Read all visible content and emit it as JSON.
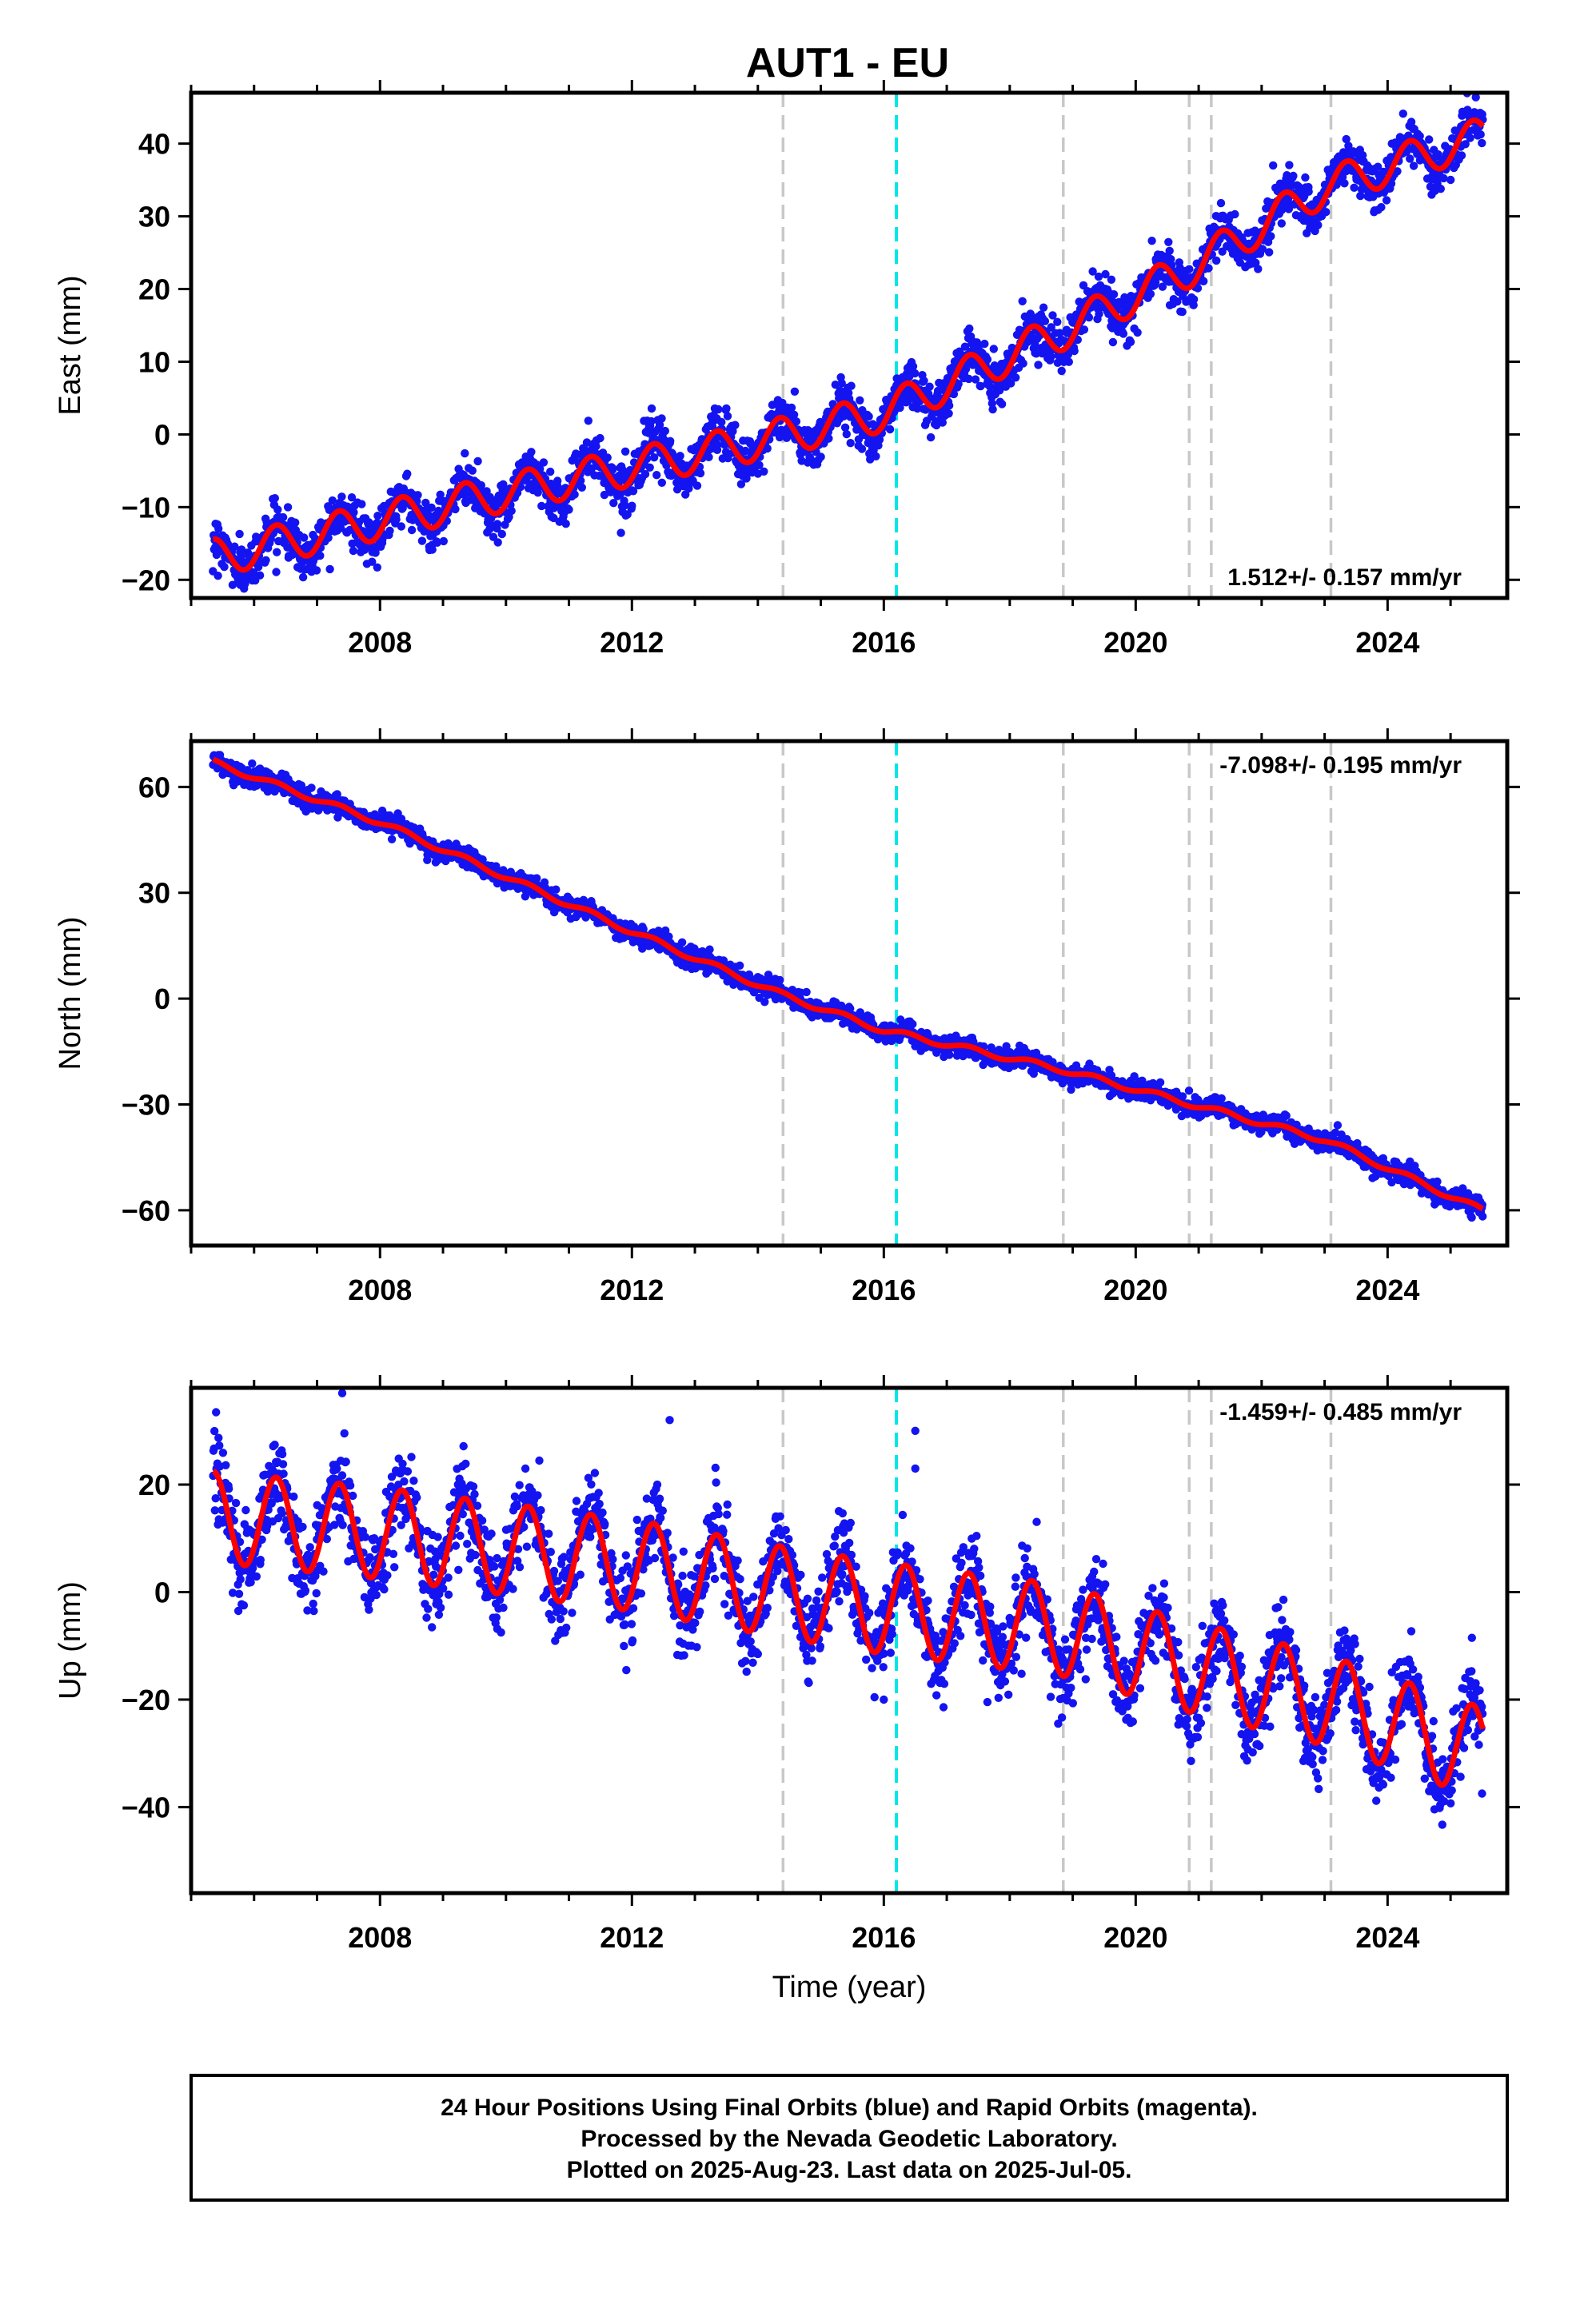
{
  "chart_data": [
    {
      "type": "scatter",
      "panel": "east",
      "title": "AUT1 - EU",
      "xlabel": "",
      "ylabel": "East (mm)",
      "xlim": [
        2005.0,
        2025.9
      ],
      "ylim": [
        -22.5,
        47
      ],
      "yticks": [
        -20,
        -10,
        0,
        10,
        20,
        30,
        40
      ],
      "xticks": [
        2008,
        2012,
        2016,
        2020,
        2024
      ],
      "grid": false,
      "rate_label": "1.512+/- 0.157 mm/yr",
      "rate_label_position": "bottom-right",
      "points_color": "#1414f0",
      "model_color": "#ff0000",
      "trend": [
        [
          2005.35,
          -17
        ],
        [
          2010,
          -8
        ],
        [
          2014,
          -1
        ],
        [
          2016,
          3
        ],
        [
          2018.8,
          14
        ],
        [
          2020.9,
          23
        ],
        [
          2023,
          34
        ],
        [
          2025.5,
          41
        ]
      ],
      "seasonal_amplitude": 2.6,
      "offsets": [],
      "noise": 1.6,
      "outliers": []
    },
    {
      "type": "scatter",
      "panel": "north",
      "title": "",
      "xlabel": "",
      "ylabel": "North (mm)",
      "xlim": [
        2005.0,
        2025.9
      ],
      "ylim": [
        -70,
        73
      ],
      "yticks": [
        -60,
        -30,
        0,
        30,
        60
      ],
      "xticks": [
        2008,
        2012,
        2016,
        2020,
        2024
      ],
      "grid": false,
      "rate_label": "-7.098+/- 0.195 mm/yr",
      "rate_label_position": "top-right",
      "points_color": "#1414f0",
      "model_color": "#ff0000",
      "trend": [
        [
          2005.35,
          67
        ],
        [
          2008,
          50
        ],
        [
          2012,
          19
        ],
        [
          2014.4,
          1
        ],
        [
          2016,
          -9
        ],
        [
          2018.8,
          -20
        ],
        [
          2020.9,
          -30
        ],
        [
          2023,
          -40
        ],
        [
          2025.5,
          -60
        ]
      ],
      "seasonal_amplitude": 0.8,
      "offsets": [
        [
          2023.1,
          -4
        ]
      ],
      "noise": 1.4,
      "outliers": []
    },
    {
      "type": "scatter",
      "panel": "up",
      "title": "",
      "xlabel": "Time (year)",
      "ylabel": "Up (mm)",
      "xlim": [
        2005.0,
        2025.9
      ],
      "ylim": [
        -56,
        38
      ],
      "yticks": [
        -40,
        -20,
        0,
        20
      ],
      "xticks": [
        2008,
        2012,
        2016,
        2020,
        2024
      ],
      "grid": false,
      "rate_label": "-1.459+/- 0.485 mm/yr",
      "rate_label_position": "top-right",
      "points_color": "#1414f0",
      "model_color": "#ff0000",
      "trend": [
        [
          2005.35,
          14
        ],
        [
          2008,
          11
        ],
        [
          2012,
          5
        ],
        [
          2014.4,
          0
        ],
        [
          2016,
          -3
        ],
        [
          2018.8,
          -7
        ],
        [
          2020.9,
          -14
        ],
        [
          2023,
          -20
        ],
        [
          2025.5,
          -30
        ]
      ],
      "seasonal_amplitude": 8.5,
      "offsets": [
        [
          2023.1,
          -6
        ]
      ],
      "noise": 4.0,
      "outliers": [
        [
          2012.6,
          32
        ],
        [
          2016.5,
          30
        ],
        [
          2016.5,
          23
        ],
        [
          2016.0,
          -20
        ],
        [
          2007.4,
          37
        ]
      ]
    }
  ],
  "event_lines": [
    {
      "x": 2014.4,
      "color": "#c8c8c8"
    },
    {
      "x": 2016.2,
      "color": "#00e6e6"
    },
    {
      "x": 2018.85,
      "color": "#c8c8c8"
    },
    {
      "x": 2020.85,
      "color": "#c8c8c8"
    },
    {
      "x": 2021.2,
      "color": "#c8c8c8"
    },
    {
      "x": 2023.1,
      "color": "#c8c8c8"
    }
  ],
  "data_range": [
    2005.35,
    2025.51
  ],
  "footer": {
    "line1": "24 Hour Positions Using Final Orbits (blue) and Rapid Orbits (magenta).",
    "line2": "Processed by the Nevada Geodetic Laboratory.",
    "line3": "Plotted on 2025-Aug-23. Last data on 2025-Jul-05."
  }
}
